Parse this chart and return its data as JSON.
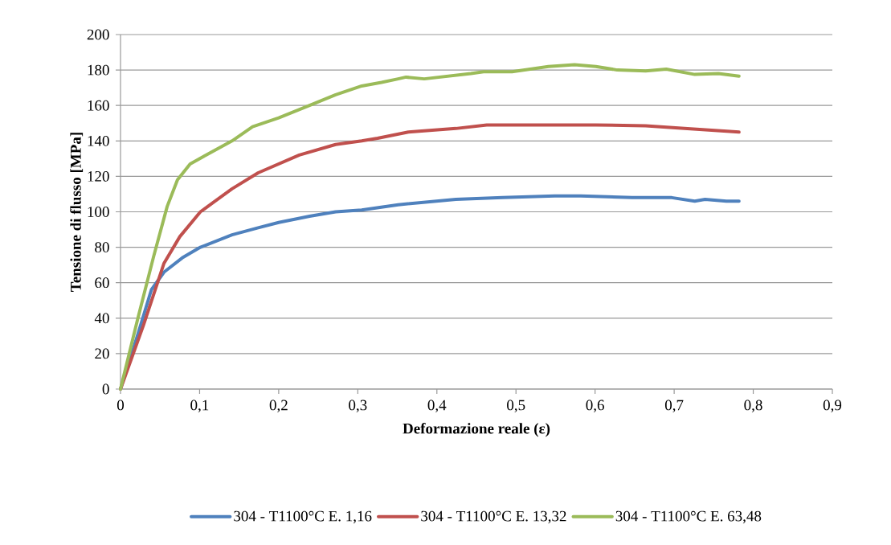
{
  "chart_data": {
    "type": "line",
    "xlabel": "Deformazione reale (ε)",
    "ylabel": "Tensione di flusso [MPa]",
    "xlim": [
      0,
      0.9
    ],
    "ylim": [
      0,
      200
    ],
    "xticks": [
      0,
      {
        "value": 0.1,
        "label": "0,1"
      },
      {
        "value": 0.2,
        "label": "0,2"
      },
      {
        "value": 0.3,
        "label": "0,3"
      },
      {
        "value": 0.4,
        "label": "0,4"
      },
      {
        "value": 0.5,
        "label": "0,5"
      },
      {
        "value": 0.6,
        "label": "0,6"
      },
      {
        "value": 0.7,
        "label": "0,7"
      },
      {
        "value": 0.8,
        "label": "0,8"
      },
      {
        "value": 0.9,
        "label": "0,9"
      }
    ],
    "yticks": [
      0,
      20,
      40,
      60,
      80,
      100,
      120,
      140,
      160,
      180,
      200
    ],
    "grid": "y",
    "legend": "bottom",
    "marker": "none",
    "line_style": "solid",
    "series": [
      {
        "name": "304 - T1100°C E. 1,16",
        "color": "#4f81bd",
        "x": [
          0,
          0.022,
          0.039,
          0.055,
          0.078,
          0.101,
          0.141,
          0.174,
          0.2,
          0.239,
          0.272,
          0.305,
          0.351,
          0.424,
          0.483,
          0.549,
          0.582,
          0.647,
          0.697,
          0.726,
          0.739,
          0.766,
          0.782
        ],
        "values": [
          0,
          31,
          56,
          66,
          74,
          80,
          87,
          91,
          94,
          97.5,
          100,
          101,
          104,
          107,
          108,
          109,
          109,
          108,
          108,
          106,
          107,
          106,
          106
        ]
      },
      {
        "name": "304 - T1100°C E. 13,32",
        "color": "#c0504d",
        "x": [
          0,
          0.029,
          0.055,
          0.075,
          0.101,
          0.141,
          0.174,
          0.2,
          0.226,
          0.272,
          0.305,
          0.325,
          0.364,
          0.424,
          0.463,
          0.516,
          0.582,
          0.601,
          0.664,
          0.713,
          0.782
        ],
        "values": [
          0,
          36,
          71,
          86,
          100,
          113,
          122,
          127,
          132,
          138,
          140,
          141.5,
          145,
          147,
          149,
          149,
          149,
          149,
          148.5,
          147,
          145
        ]
      },
      {
        "name": "304 - T1100°C E. 63,48",
        "color": "#9bbb59",
        "x": [
          0,
          0.022,
          0.042,
          0.059,
          0.072,
          0.088,
          0.108,
          0.141,
          0.167,
          0.2,
          0.239,
          0.272,
          0.305,
          0.33,
          0.351,
          0.361,
          0.384,
          0.443,
          0.459,
          0.495,
          0.541,
          0.574,
          0.601,
          0.628,
          0.664,
          0.69,
          0.726,
          0.756,
          0.782
        ],
        "values": [
          0,
          40,
          75,
          103,
          118,
          127,
          132,
          140,
          148,
          153,
          160,
          166,
          171,
          173,
          175,
          176,
          175,
          178,
          179,
          179,
          182,
          183,
          182,
          180,
          179.5,
          180.5,
          177.5,
          178,
          176.5
        ]
      }
    ]
  }
}
